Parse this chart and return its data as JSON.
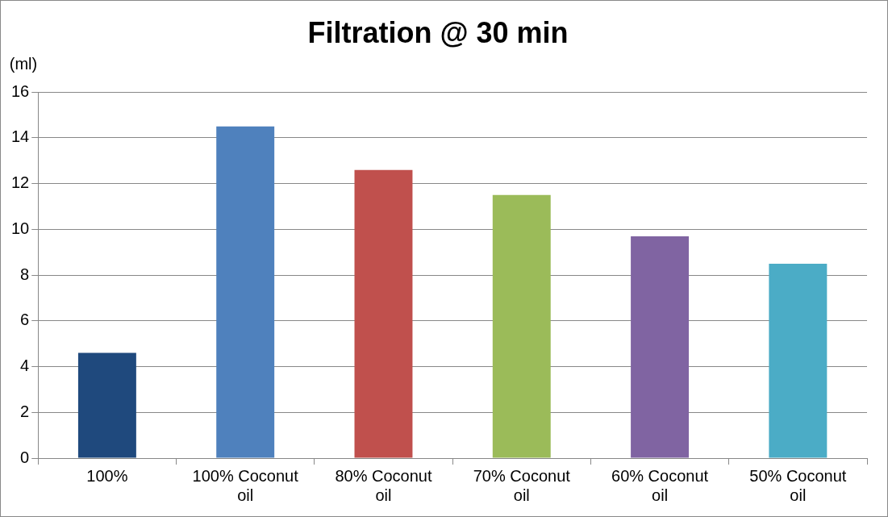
{
  "chart_data": {
    "type": "bar",
    "title": "Filtration @ 30 min",
    "ylabel": "(ml)",
    "categories": [
      "100%",
      "100% Coconut oil",
      "80% Coconut oil",
      "70% Coconut oil",
      "60% Coconut oil",
      "50% Coconut oil"
    ],
    "values": [
      4.6,
      14.5,
      12.6,
      11.5,
      9.7,
      8.5
    ],
    "colors": [
      "#1f497d",
      "#4f81bd",
      "#c0504d",
      "#9bbb59",
      "#8064a2",
      "#4bacc6"
    ],
    "ylim": [
      0,
      16
    ],
    "yticks": [
      0,
      2,
      4,
      6,
      8,
      10,
      12,
      14,
      16
    ],
    "grid": "y",
    "legend": false
  }
}
